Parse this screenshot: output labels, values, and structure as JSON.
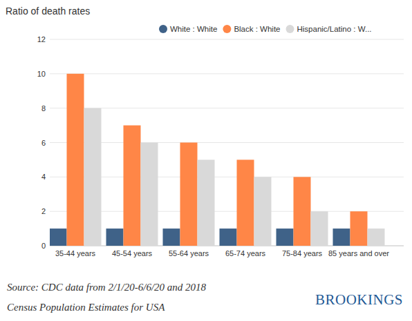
{
  "chart_data": {
    "type": "bar",
    "ylabel": "Ratio of death rates",
    "categories": [
      "35-44 years",
      "45-54 years",
      "55-64 years",
      "65-74 years",
      "75-84 years",
      "85 years and over"
    ],
    "series": [
      {
        "name": "White : White",
        "color": "#3f6288",
        "values": [
          1,
          1,
          1,
          1,
          1,
          1
        ]
      },
      {
        "name": "Black : White",
        "color": "#ff8647",
        "values": [
          10,
          7,
          6,
          5,
          4,
          2
        ]
      },
      {
        "name": "Hispanic/Latino : W...",
        "color": "#d9d9d9",
        "values": [
          8,
          6,
          5,
          4,
          2,
          1
        ]
      }
    ],
    "ylim": [
      0,
      12
    ],
    "yticks": [
      0,
      2,
      4,
      6,
      8,
      10,
      12
    ],
    "grid": true,
    "legend": "top-right",
    "annotations": [
      "Source: CDC data from 2/1/20-6/6/20 and 2018",
      "Census Population Estimates for USA",
      "BROOKINGS"
    ]
  }
}
